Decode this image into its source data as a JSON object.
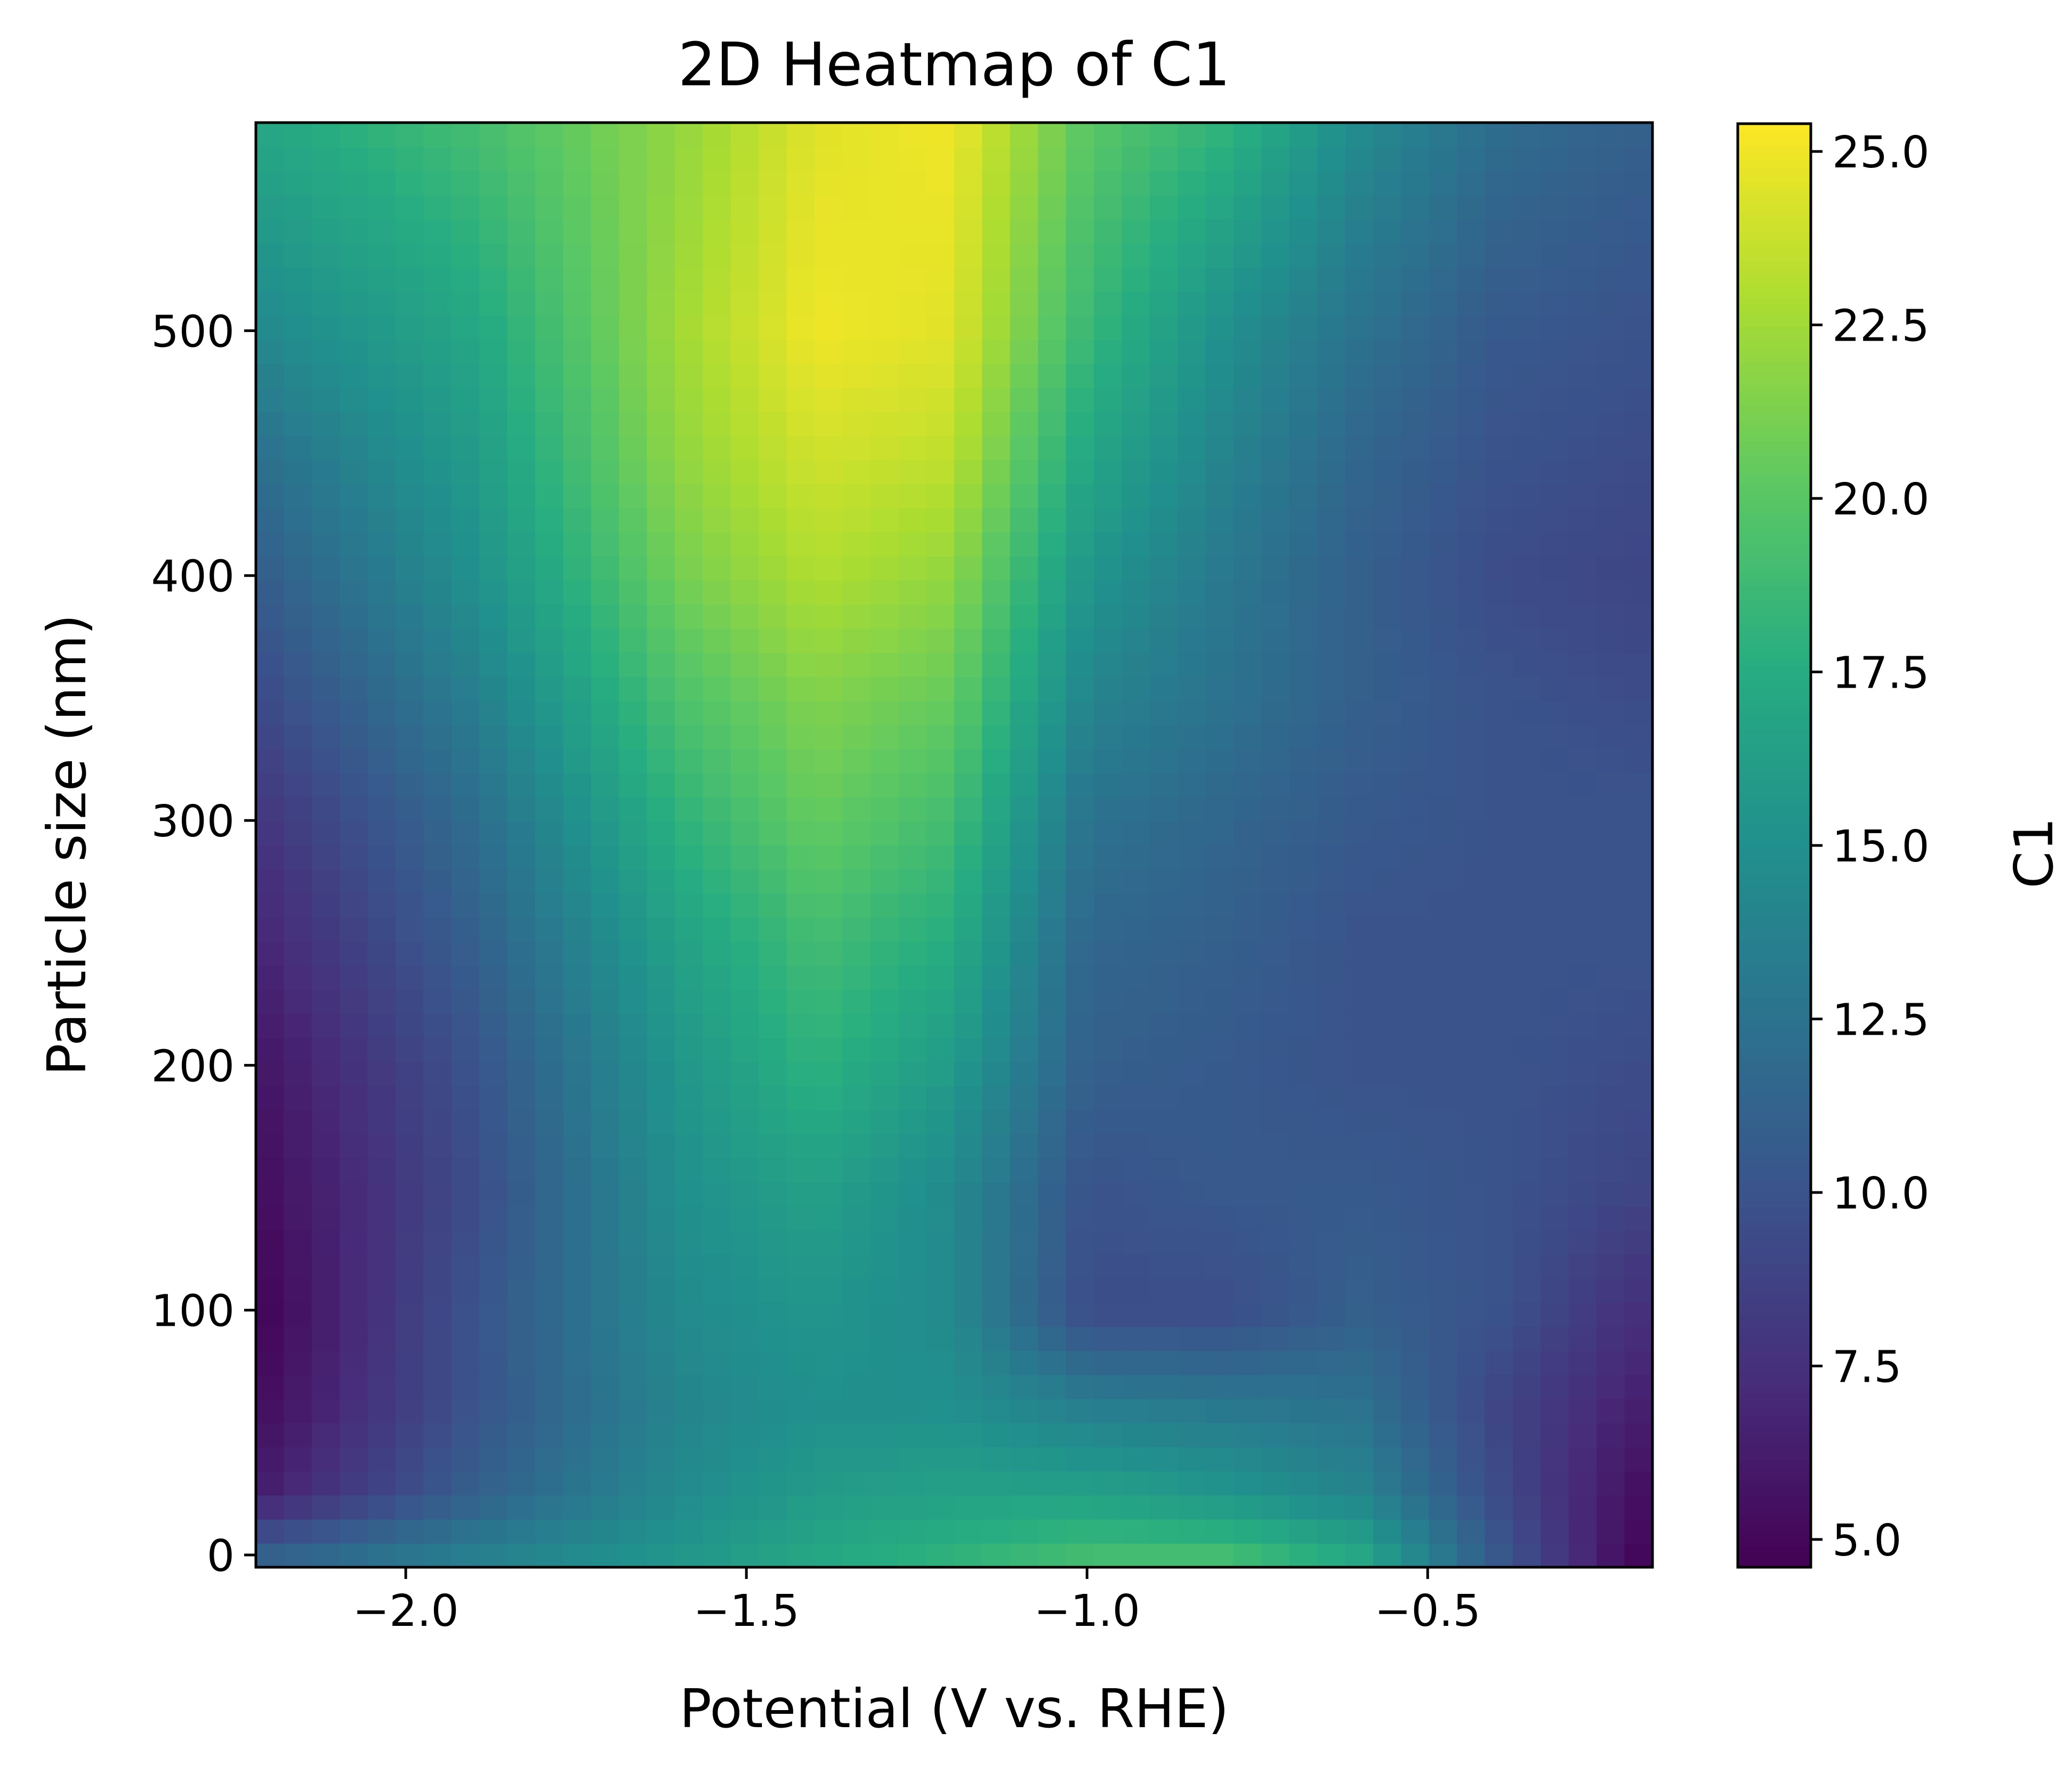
{
  "chart_data": {
    "type": "heatmap",
    "title": "2D Heatmap of C1",
    "xlabel": "Potential (V vs. RHE)",
    "ylabel": "Particle size (nm)",
    "xlim": [
      -2.22,
      -0.17
    ],
    "ylim": [
      -5,
      585
    ],
    "x_ticks": [
      {
        "value": -2.0,
        "label": "−2.0"
      },
      {
        "value": -1.5,
        "label": "−1.5"
      },
      {
        "value": -1.0,
        "label": "−1.0"
      },
      {
        "value": -0.5,
        "label": "−0.5"
      }
    ],
    "y_ticks": [
      {
        "value": 0,
        "label": "0"
      },
      {
        "value": 100,
        "label": "100"
      },
      {
        "value": 200,
        "label": "200"
      },
      {
        "value": 300,
        "label": "300"
      },
      {
        "value": 400,
        "label": "400"
      },
      {
        "value": 500,
        "label": "500"
      }
    ],
    "colorbar": {
      "label": "C1",
      "colormap": "viridis",
      "range": [
        4.6,
        25.4
      ],
      "ticks": [
        {
          "value": 5.0,
          "label": "5.0"
        },
        {
          "value": 7.5,
          "label": "7.5"
        },
        {
          "value": 10.0,
          "label": "10.0"
        },
        {
          "value": 12.5,
          "label": "12.5"
        },
        {
          "value": 15.0,
          "label": "15.0"
        },
        {
          "value": 17.5,
          "label": "17.5"
        },
        {
          "value": 20.0,
          "label": "20.0"
        },
        {
          "value": 22.5,
          "label": "22.5"
        },
        {
          "value": 25.0,
          "label": "25.0"
        }
      ]
    },
    "grid": false,
    "x": [
      -2.2,
      -1.9,
      -1.6,
      -1.4,
      -1.2,
      -1.0,
      -0.8,
      -0.6,
      -0.4,
      -0.2
    ],
    "y": [
      0,
      25,
      60,
      100,
      150,
      200,
      250,
      300,
      350,
      400,
      450,
      500,
      580
    ],
    "z": [
      [
        11.0,
        13.5,
        15.5,
        17.0,
        18.0,
        19.0,
        19.0,
        17.0,
        10.5,
        5.0
      ],
      [
        6.5,
        11.0,
        14.5,
        16.0,
        16.5,
        16.5,
        15.5,
        14.0,
        9.5,
        5.5
      ],
      [
        5.5,
        10.0,
        14.0,
        15.0,
        15.0,
        13.5,
        13.0,
        12.5,
        9.0,
        6.5
      ],
      [
        5.0,
        10.0,
        14.5,
        15.5,
        14.5,
        9.5,
        9.5,
        11.0,
        10.0,
        7.5
      ],
      [
        5.5,
        9.5,
        15.0,
        16.5,
        14.5,
        10.0,
        10.5,
        10.5,
        10.0,
        9.0
      ],
      [
        6.0,
        10.0,
        15.5,
        18.0,
        16.0,
        11.0,
        10.5,
        10.0,
        10.0,
        9.5
      ],
      [
        7.0,
        11.0,
        16.5,
        19.0,
        17.5,
        11.5,
        11.0,
        10.0,
        10.0,
        10.0
      ],
      [
        8.0,
        12.0,
        18.0,
        20.5,
        19.0,
        12.5,
        11.5,
        10.5,
        10.0,
        10.0
      ],
      [
        9.5,
        13.5,
        19.5,
        21.5,
        20.5,
        14.0,
        12.5,
        11.0,
        10.0,
        9.5
      ],
      [
        11.0,
        15.0,
        21.0,
        23.0,
        22.0,
        15.5,
        13.0,
        11.0,
        9.5,
        9.0
      ],
      [
        12.5,
        16.0,
        22.0,
        24.0,
        23.5,
        17.0,
        14.0,
        11.5,
        10.0,
        9.5
      ],
      [
        14.5,
        17.0,
        22.5,
        25.0,
        24.5,
        18.5,
        15.0,
        12.5,
        10.5,
        10.0
      ],
      [
        17.0,
        19.0,
        22.0,
        24.5,
        25.0,
        20.0,
        18.0,
        14.5,
        12.0,
        11.0
      ]
    ]
  }
}
